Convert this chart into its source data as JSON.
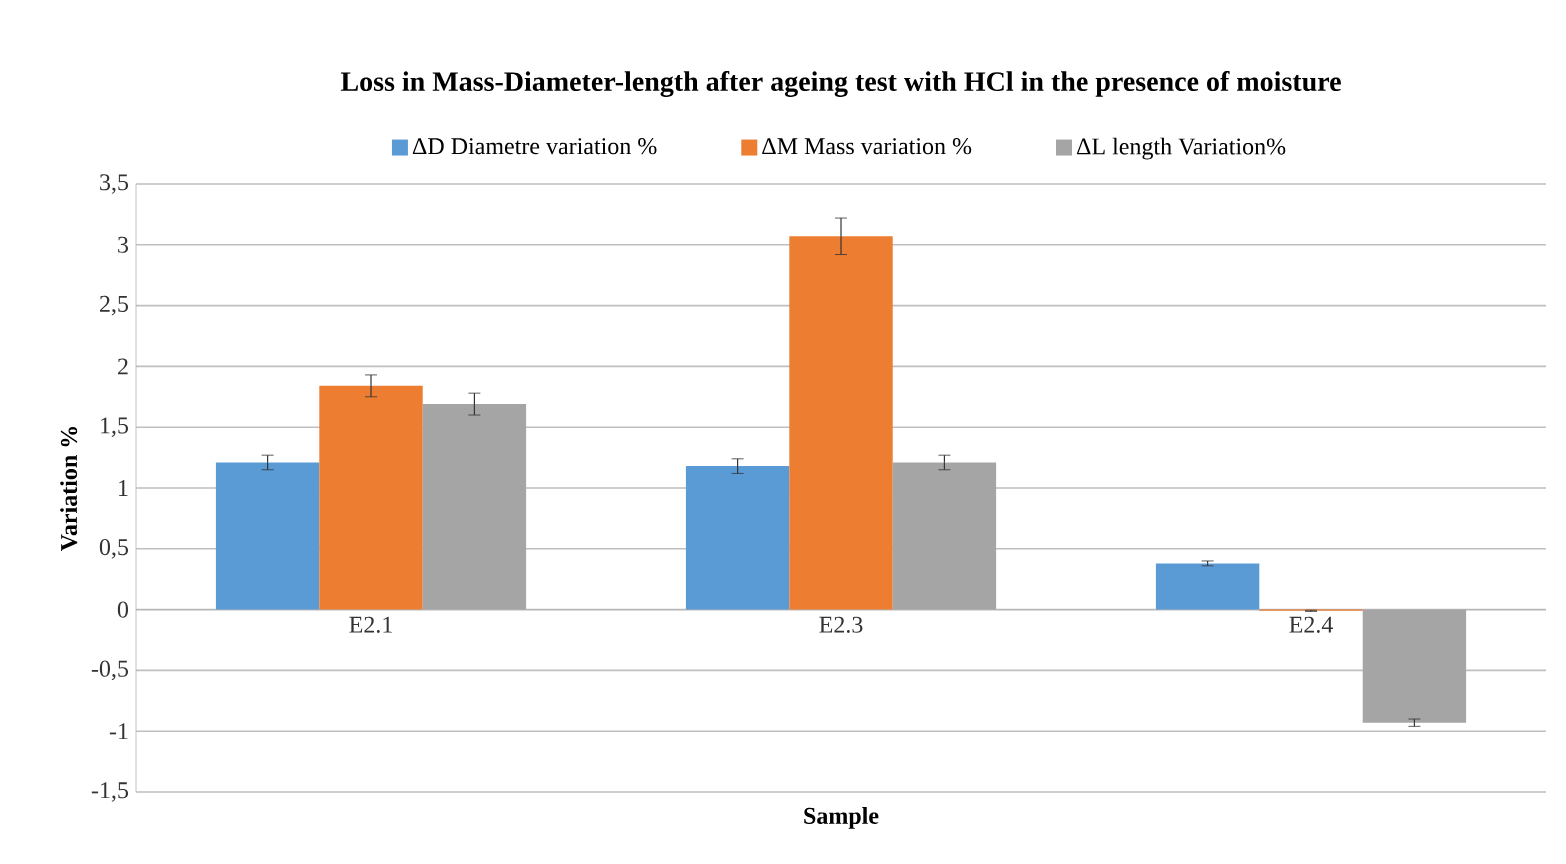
{
  "chart_data": {
    "type": "bar",
    "title": "Loss in Mass-Diameter-length  after ageing test with HCl in the presence of moisture",
    "xlabel": "Sample",
    "ylabel": "Variation %",
    "categories": [
      "E2.1",
      "E2.3",
      "E2.4"
    ],
    "series": [
      {
        "name": "ΔD  Diametre variation %",
        "color": "#5b9bd5",
        "values": [
          1.21,
          1.18,
          0.38
        ],
        "errors": [
          0.06,
          0.06,
          0.02
        ]
      },
      {
        "name": "ΔM   Mass variation %",
        "color": "#ed7d31",
        "values": [
          1.84,
          3.07,
          -0.01
        ],
        "errors": [
          0.09,
          0.15,
          0.005
        ]
      },
      {
        "name": "ΔL  length Variation%",
        "color": "#a5a5a5",
        "values": [
          1.69,
          1.21,
          -0.93
        ],
        "errors": [
          0.09,
          0.06,
          0.03
        ]
      }
    ],
    "ylim": [
      -1.5,
      3.5
    ],
    "yticks": [
      {
        "value": -1.5,
        "label": "-1,5"
      },
      -1,
      {
        "value": -0.5,
        "label": "-0,5"
      },
      0,
      {
        "value": 0.5,
        "label": "0,5"
      },
      1,
      {
        "value": 1.5,
        "label": "1,5"
      },
      2,
      {
        "value": 2.5,
        "label": "2,5"
      },
      3,
      {
        "value": 3.5,
        "label": "3,5"
      }
    ],
    "grid": "y",
    "legend": "top"
  }
}
